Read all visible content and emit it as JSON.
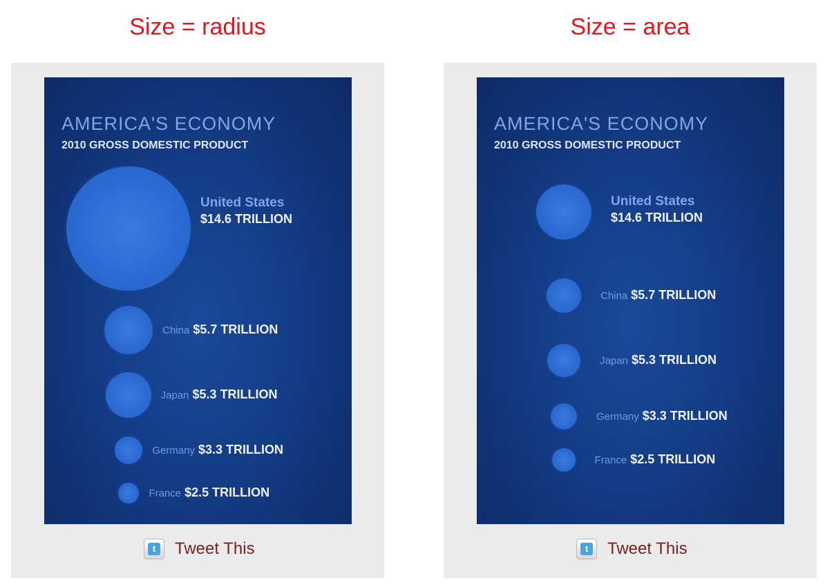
{
  "headings": {
    "left": "Size = radius",
    "right": "Size = area"
  },
  "panel": {
    "title": "AMERICA'S ECONOMY",
    "subtitle": "2010 GROSS DOMESTIC PRODUCT",
    "tweet_label": "Tweet This",
    "tweet_icon": "twitter-icon"
  },
  "colors": {
    "heading": "#e8141a",
    "panel_bg": "#143c86",
    "bubble": "#2c6bd4",
    "label_name": "#6f9ae0",
    "label_value": "#eef2fa"
  },
  "chart_data": [
    {
      "type": "bubble",
      "encoding": "radius",
      "title": "AMERICA'S ECONOMY",
      "subtitle": "2010 GROSS DOMESTIC PRODUCT",
      "categories": [
        "United States",
        "China",
        "Japan",
        "Germany",
        "France"
      ],
      "values": [
        14.6,
        5.7,
        5.3,
        3.3,
        2.5
      ],
      "value_labels": [
        "$14.6 TRILLION",
        "$5.7 TRILLION",
        "$5.3 TRILLION",
        "$3.3 TRILLION",
        "$2.5 TRILLION"
      ]
    },
    {
      "type": "bubble",
      "encoding": "area",
      "title": "AMERICA'S ECONOMY",
      "subtitle": "2010 GROSS DOMESTIC PRODUCT",
      "categories": [
        "United States",
        "China",
        "Japan",
        "Germany",
        "France"
      ],
      "values": [
        14.6,
        5.7,
        5.3,
        3.3,
        2.5
      ],
      "value_labels": [
        "$14.6 TRILLION",
        "$5.7 TRILLION",
        "$5.3 TRILLION",
        "$3.3 TRILLION",
        "$2.5 TRILLION"
      ]
    }
  ]
}
